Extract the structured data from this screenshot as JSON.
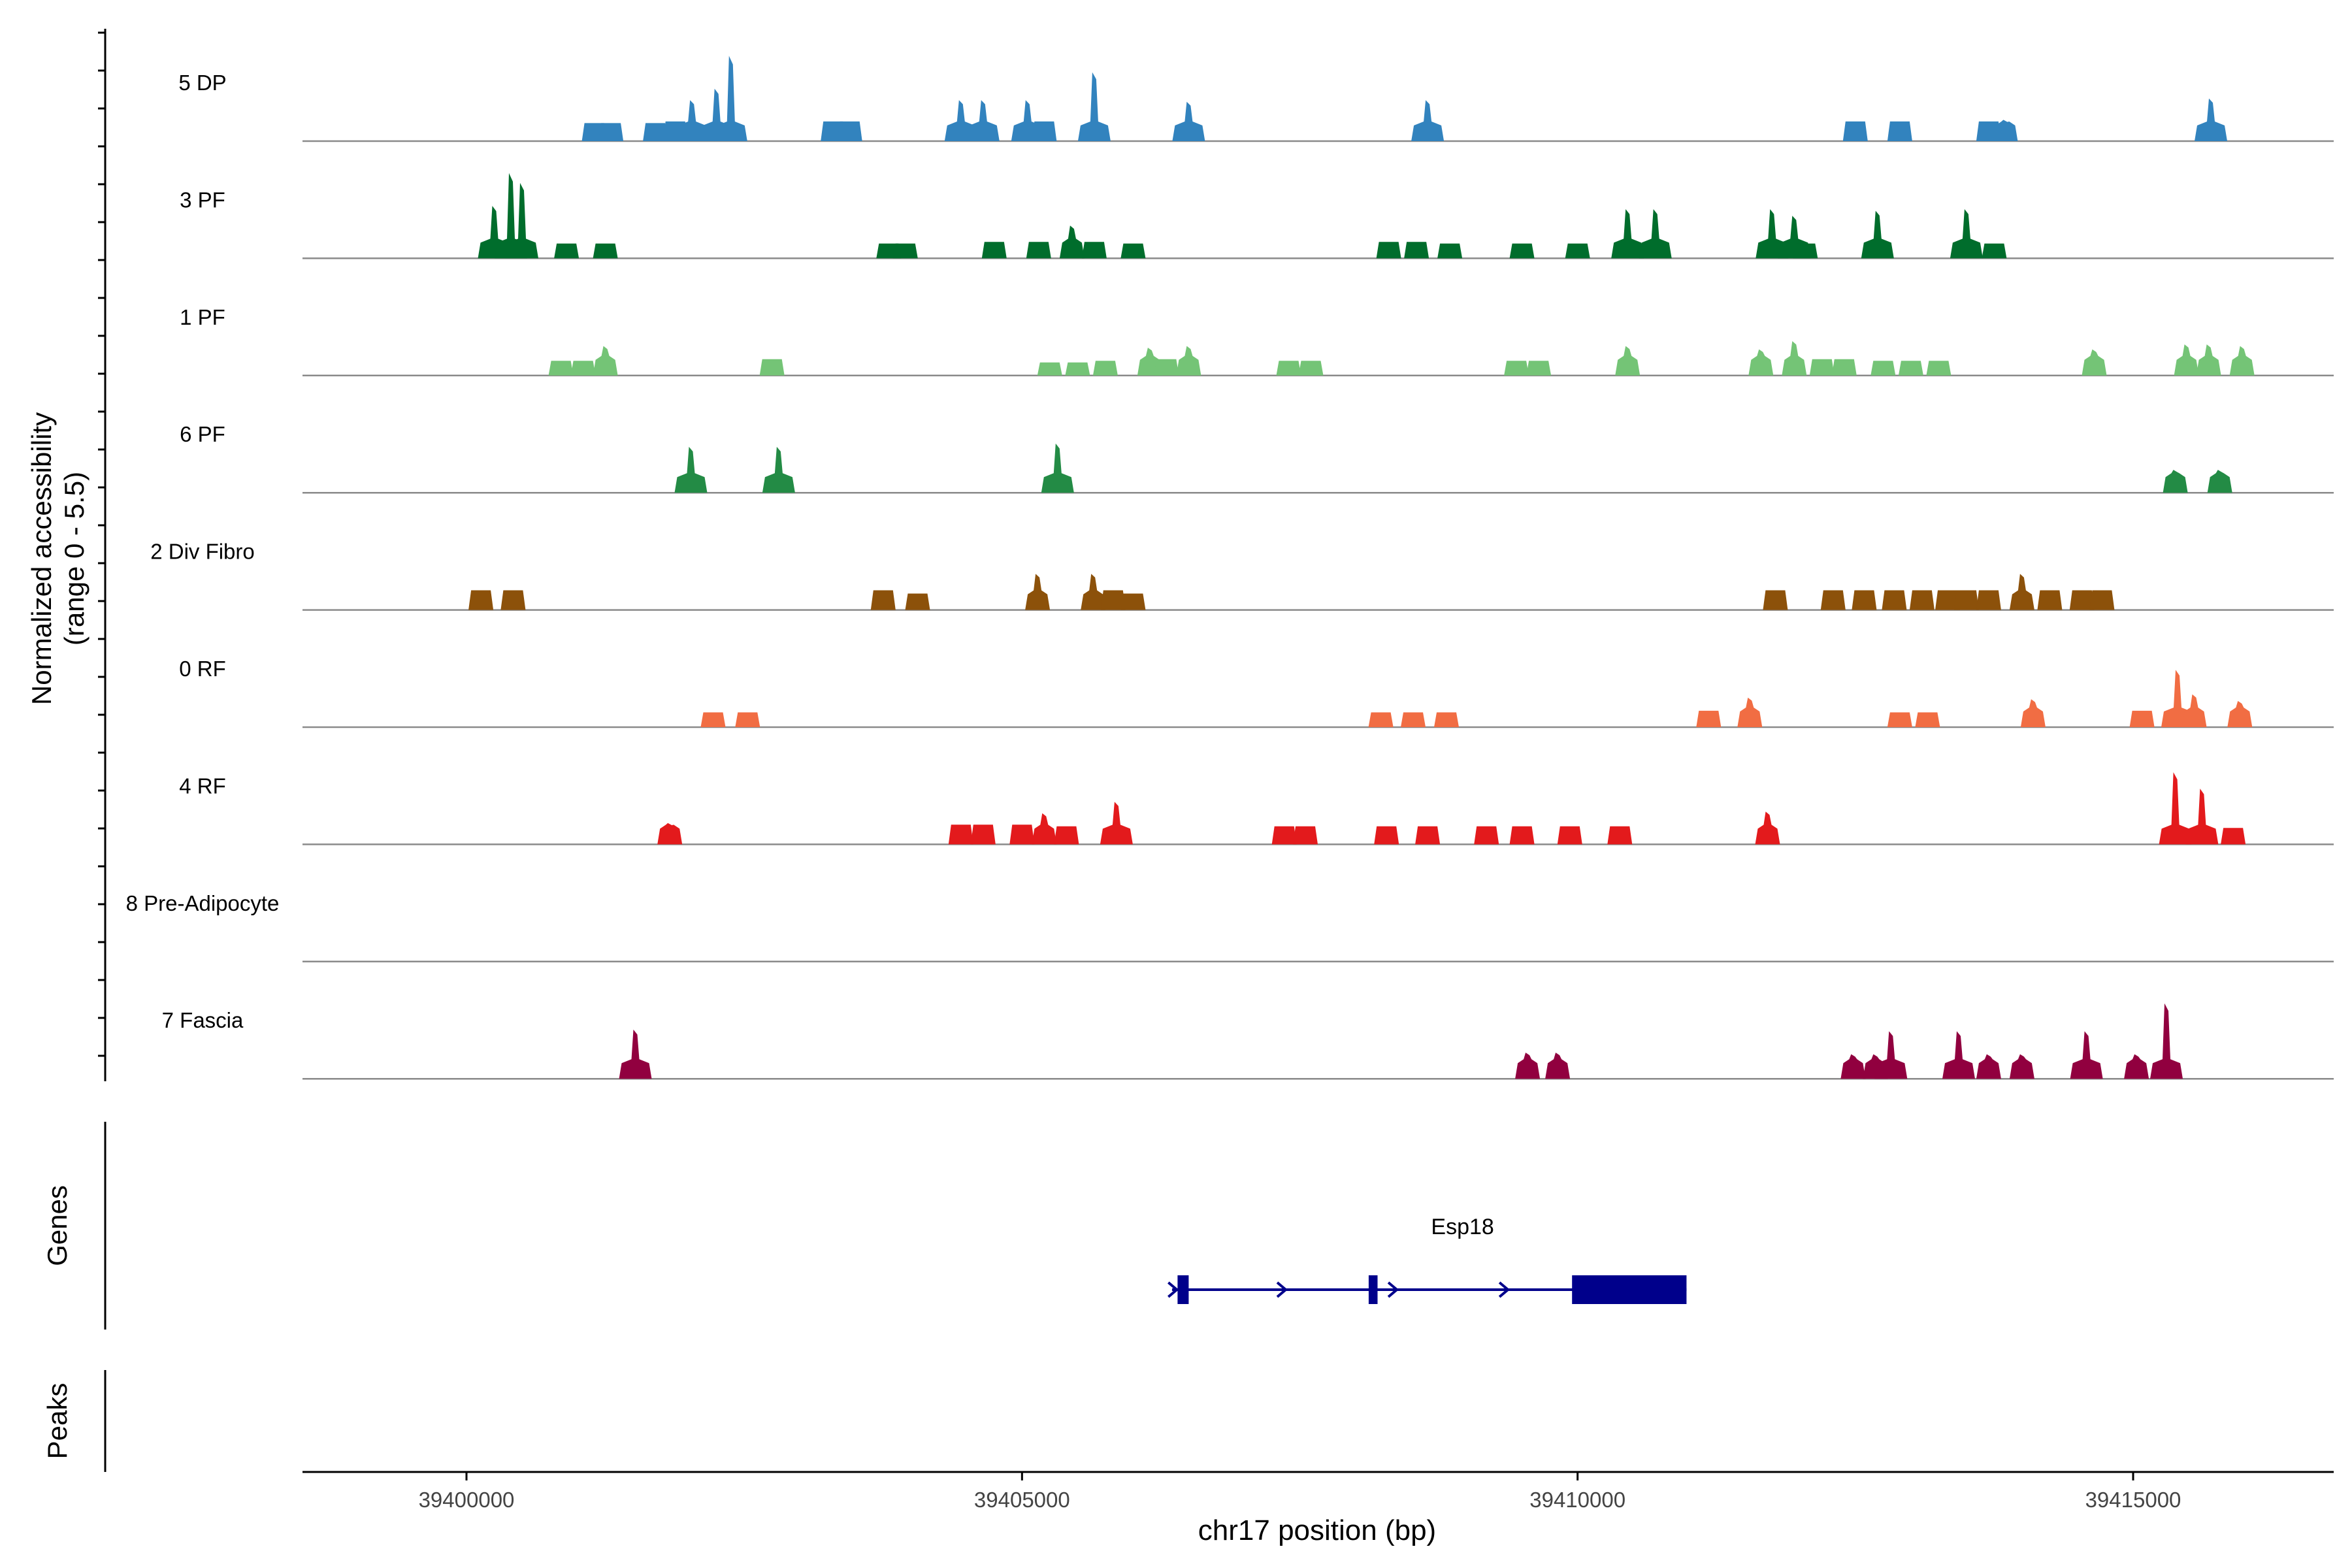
{
  "chart_data": {
    "type": "area",
    "title": "",
    "y_axis_label_line1": "Normalized accessibility",
    "y_axis_label_line2": "(range 0 - 5.5)",
    "ylim": [
      0,
      5.5
    ],
    "xlabel": "chr17 position (bp)",
    "xlim": [
      39398500,
      39416800
    ],
    "x_ticks": [
      39400000,
      39405000,
      39410000,
      39415000
    ],
    "x_tick_labels": [
      "39400000",
      "39405000",
      "39410000",
      "39415000"
    ],
    "genes_label": "Genes",
    "peaks_label": "Peaks",
    "gene": {
      "name": "Esp18",
      "color": "#00008B",
      "start": 39406350,
      "end": 39410980,
      "strand": "+",
      "exons": [
        [
          39406400,
          39406500
        ],
        [
          39408120,
          39408200
        ],
        [
          39409950,
          39410980
        ]
      ]
    },
    "series": [
      {
        "name": "5 DP",
        "color": "#3283BE",
        "peaks": [
          [
            39401150,
            1.1
          ],
          [
            39401300,
            1.1
          ],
          [
            39401700,
            1.1
          ],
          [
            39401880,
            1.2
          ],
          [
            39402030,
            2.5
          ],
          [
            39402250,
            3.2
          ],
          [
            39402380,
            5.2
          ],
          [
            39403300,
            1.2
          ],
          [
            39403450,
            1.2
          ],
          [
            39404450,
            2.5
          ],
          [
            39404650,
            2.5
          ],
          [
            39405050,
            2.5
          ],
          [
            39405200,
            1.2
          ],
          [
            39405650,
            4.2
          ],
          [
            39406500,
            2.4
          ],
          [
            39408650,
            2.5
          ],
          [
            39412500,
            1.2
          ],
          [
            39412900,
            1.2
          ],
          [
            39413700,
            1.2
          ],
          [
            39413850,
            1.3
          ],
          [
            39415700,
            2.6
          ]
        ]
      },
      {
        "name": "3 PF",
        "color": "#006D2C",
        "peaks": [
          [
            39400250,
            3.2
          ],
          [
            39400400,
            5.2
          ],
          [
            39400500,
            4.6
          ],
          [
            39400900,
            0.9
          ],
          [
            39401250,
            0.9
          ],
          [
            39403800,
            0.9
          ],
          [
            39403950,
            0.9
          ],
          [
            39404750,
            1.0
          ],
          [
            39405150,
            1.0
          ],
          [
            39405450,
            2.0
          ],
          [
            39405650,
            1.0
          ],
          [
            39406000,
            0.9
          ],
          [
            39408300,
            1.0
          ],
          [
            39408550,
            1.0
          ],
          [
            39408850,
            0.9
          ],
          [
            39409500,
            0.9
          ],
          [
            39410000,
            0.9
          ],
          [
            39410450,
            3.0
          ],
          [
            39410700,
            3.0
          ],
          [
            39411750,
            3.0
          ],
          [
            39411950,
            2.6
          ],
          [
            39412050,
            0.9
          ],
          [
            39412700,
            2.9
          ],
          [
            39413500,
            3.0
          ],
          [
            39413750,
            0.9
          ]
        ]
      },
      {
        "name": "1 PF",
        "color": "#74C476",
        "peaks": [
          [
            39400850,
            0.9
          ],
          [
            39401050,
            0.9
          ],
          [
            39401250,
            1.8
          ],
          [
            39402750,
            1.0
          ],
          [
            39405250,
            0.8
          ],
          [
            39405500,
            0.8
          ],
          [
            39405750,
            0.9
          ],
          [
            39406150,
            1.7
          ],
          [
            39406300,
            1.0
          ],
          [
            39406500,
            1.8
          ],
          [
            39407400,
            0.9
          ],
          [
            39407600,
            0.9
          ],
          [
            39409450,
            0.9
          ],
          [
            39409650,
            0.9
          ],
          [
            39410450,
            1.8
          ],
          [
            39411650,
            1.6
          ],
          [
            39411950,
            2.1
          ],
          [
            39412200,
            1.0
          ],
          [
            39412400,
            1.0
          ],
          [
            39412750,
            0.9
          ],
          [
            39413000,
            0.9
          ],
          [
            39413250,
            0.9
          ],
          [
            39414650,
            1.6
          ],
          [
            39415480,
            1.9
          ],
          [
            39415680,
            1.9
          ],
          [
            39415980,
            1.8
          ]
        ]
      },
      {
        "name": "6 PF",
        "color": "#238B45",
        "peaks": [
          [
            39402020,
            2.8
          ],
          [
            39402810,
            2.8
          ],
          [
            39405320,
            3.0
          ],
          [
            39415380,
            1.4
          ],
          [
            39415780,
            1.4
          ]
        ]
      },
      {
        "name": "2 Div Fibro",
        "color": "#8C510A",
        "peaks": [
          [
            39400130,
            1.2
          ],
          [
            39400420,
            1.2
          ],
          [
            39403750,
            1.2
          ],
          [
            39404060,
            1.0
          ],
          [
            39405140,
            2.2
          ],
          [
            39405640,
            2.2
          ],
          [
            39405820,
            1.2
          ],
          [
            39406000,
            1.0
          ],
          [
            39411780,
            1.2
          ],
          [
            39412300,
            1.2
          ],
          [
            39412580,
            1.2
          ],
          [
            39412850,
            1.2
          ],
          [
            39413100,
            1.2
          ],
          [
            39413330,
            1.2
          ],
          [
            39413500,
            1.2
          ],
          [
            39413700,
            1.2
          ],
          [
            39414000,
            2.2
          ],
          [
            39414250,
            1.2
          ],
          [
            39414540,
            1.2
          ],
          [
            39414720,
            1.2
          ]
        ]
      },
      {
        "name": "0 RF",
        "color": "#F16D43",
        "peaks": [
          [
            39402220,
            0.9
          ],
          [
            39402530,
            0.9
          ],
          [
            39408230,
            0.9
          ],
          [
            39408520,
            0.9
          ],
          [
            39408820,
            0.9
          ],
          [
            39411180,
            1.0
          ],
          [
            39411550,
            1.8
          ],
          [
            39412900,
            0.9
          ],
          [
            39413150,
            0.9
          ],
          [
            39414100,
            1.7
          ],
          [
            39415080,
            1.0
          ],
          [
            39415400,
            3.5
          ],
          [
            39415550,
            2.0
          ],
          [
            39415960,
            1.6
          ]
        ]
      },
      {
        "name": "4 RF",
        "color": "#E31A1C",
        "peaks": [
          [
            39401830,
            1.3
          ],
          [
            39404450,
            1.2
          ],
          [
            39404650,
            1.2
          ],
          [
            39405000,
            1.2
          ],
          [
            39405200,
            1.9
          ],
          [
            39405400,
            1.1
          ],
          [
            39405850,
            2.6
          ],
          [
            39407360,
            1.1
          ],
          [
            39407550,
            1.1
          ],
          [
            39408280,
            1.1
          ],
          [
            39408650,
            1.1
          ],
          [
            39409180,
            1.1
          ],
          [
            39409500,
            1.1
          ],
          [
            39409930,
            1.1
          ],
          [
            39410380,
            1.1
          ],
          [
            39411710,
            2.0
          ],
          [
            39415380,
            4.4
          ],
          [
            39415620,
            3.4
          ],
          [
            39415900,
            1.0
          ]
        ]
      },
      {
        "name": "8 Pre-Adipocyte",
        "color": "#E7298A",
        "peaks": []
      },
      {
        "name": "7 Fascia",
        "color": "#91003F",
        "peaks": [
          [
            39401520,
            3.0
          ],
          [
            39409550,
            1.6
          ],
          [
            39409820,
            1.6
          ],
          [
            39412480,
            1.5
          ],
          [
            39412680,
            1.5
          ],
          [
            39412820,
            2.9
          ],
          [
            39413430,
            2.9
          ],
          [
            39413700,
            1.5
          ],
          [
            39414000,
            1.5
          ],
          [
            39414580,
            2.9
          ],
          [
            39415030,
            1.5
          ],
          [
            39415300,
            4.6
          ]
        ]
      }
    ]
  }
}
